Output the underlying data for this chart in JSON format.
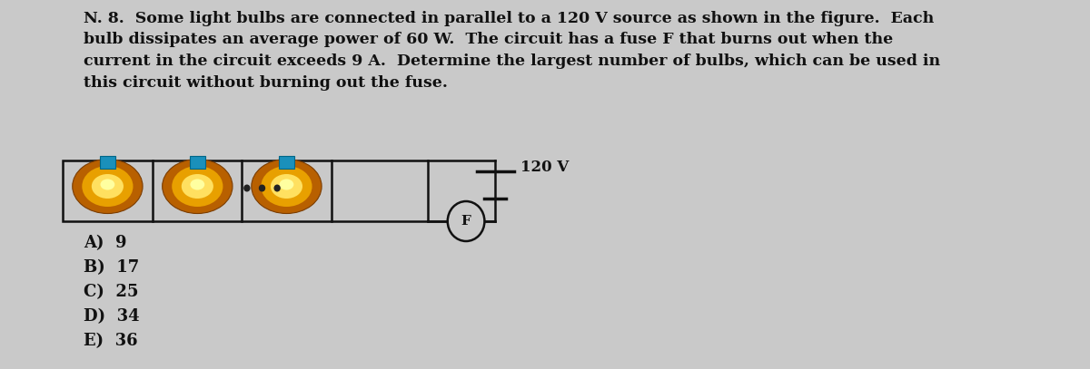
{
  "title_text": "N. 8.  Some light bulbs are connected in parallel to a 120 V source as shown in the figure.  Each\nbulb dissipates an average power of 60 W.  The circuit has a fuse F that burns out when the\ncurrent in the circuit exceeds 9 A.  Determine the largest number of bulbs, which can be used in\nthis circuit without burning out the fuse.",
  "choices": [
    "A)  9",
    "B)  17",
    "C)  25",
    "D)  34",
    "E)  36"
  ],
  "bg_color": "#c9c9c9",
  "text_color": "#111111",
  "circuit_label": "120 V",
  "fuse_label": "F",
  "title_fontsize": 12.5,
  "choices_fontsize": 13.0
}
